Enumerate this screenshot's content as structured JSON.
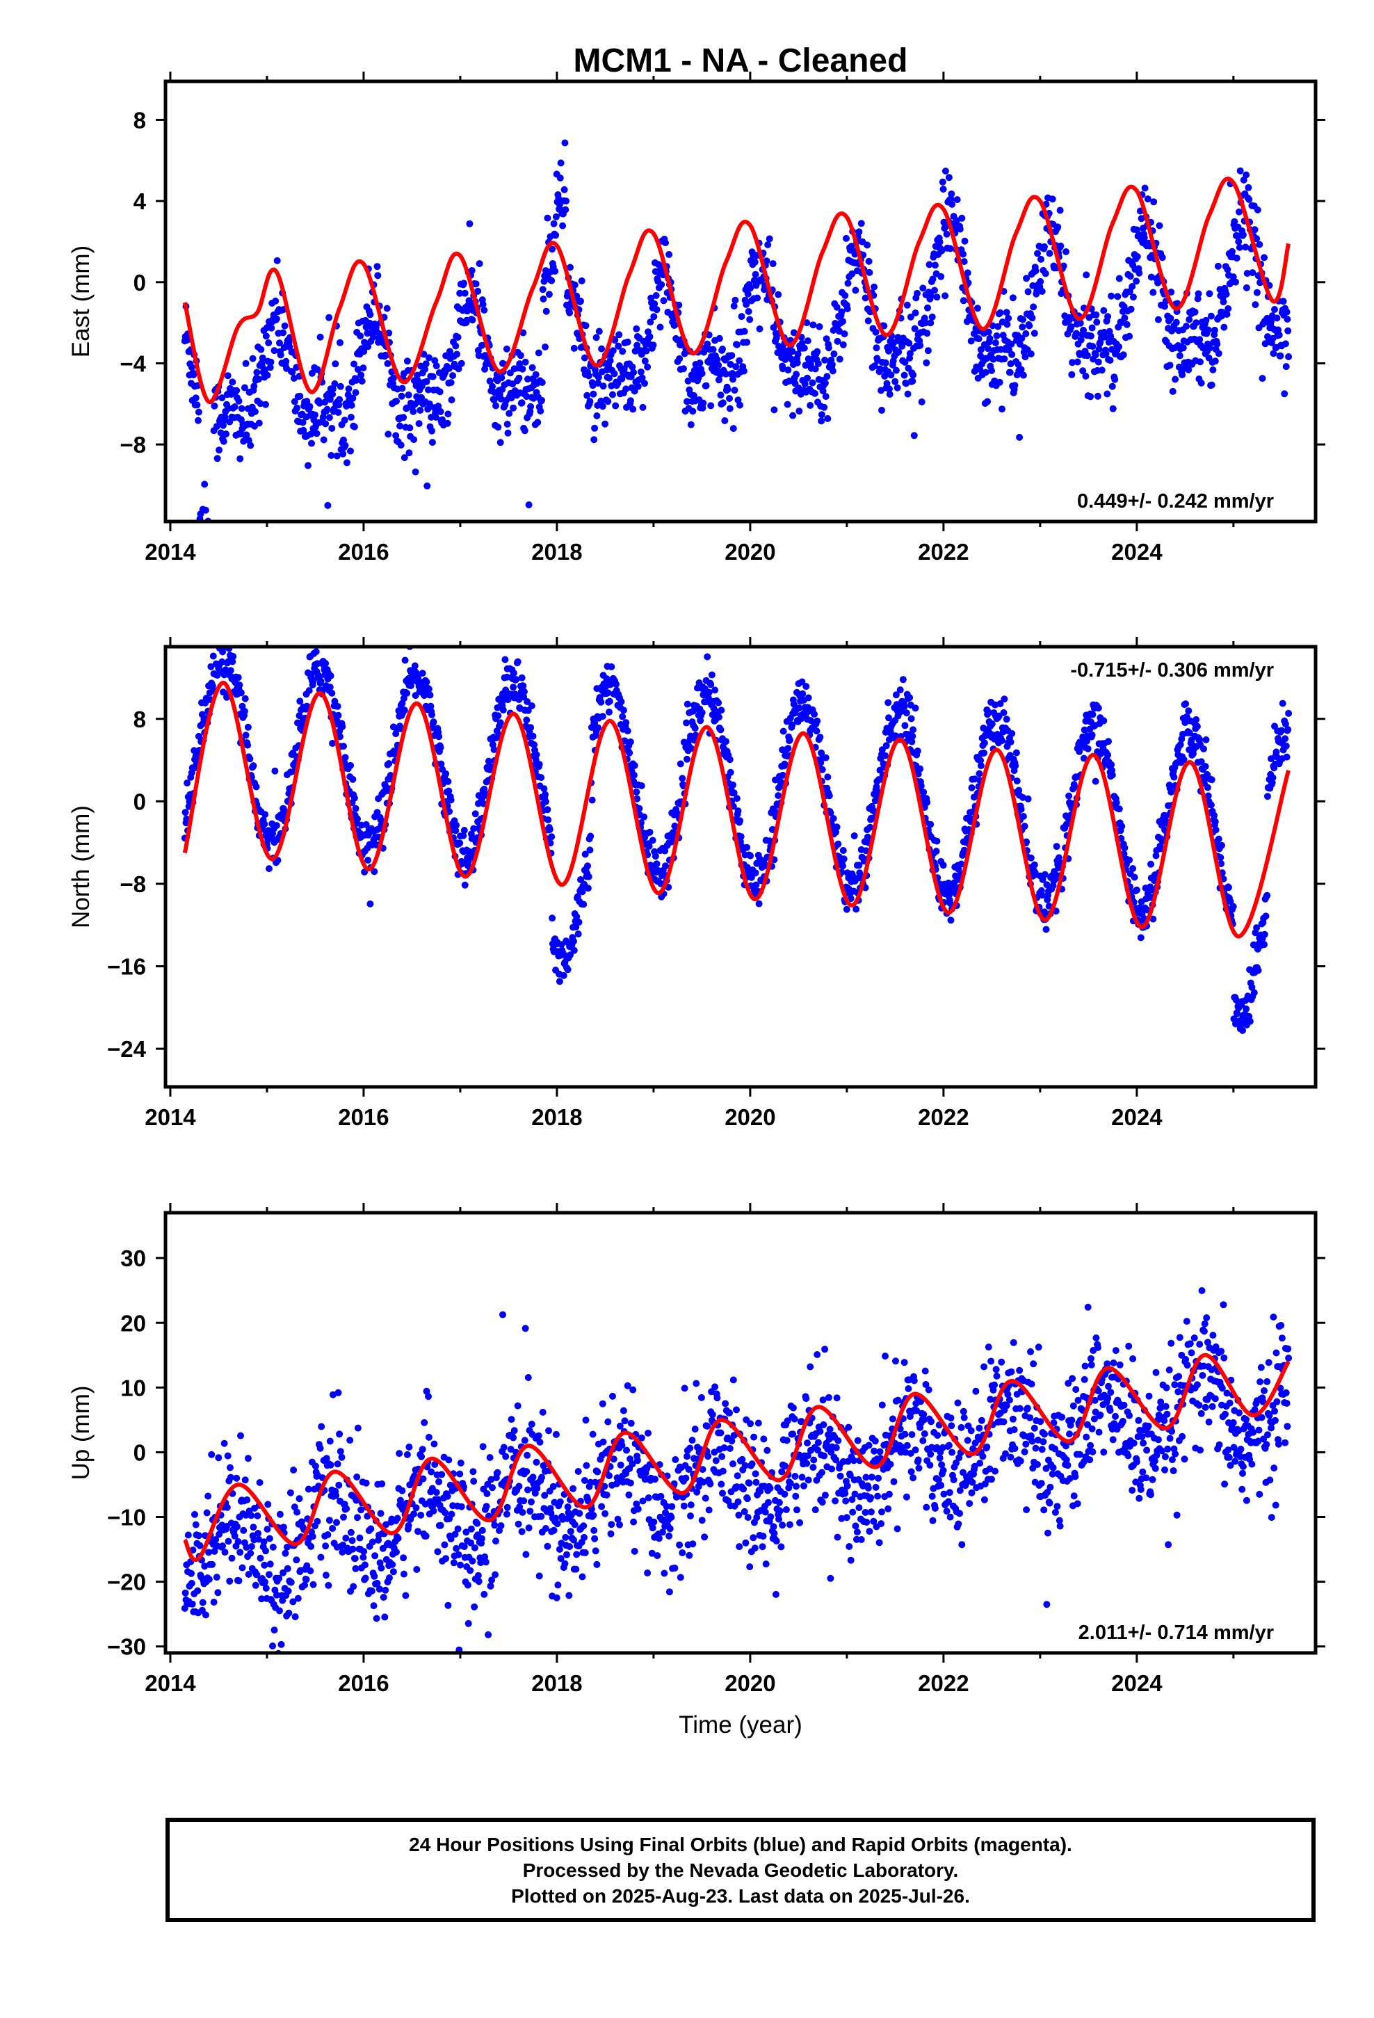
{
  "chart_data": [
    {
      "type": "scatter",
      "title": "MCM1  - NA - Cleaned",
      "xlabel": "",
      "ylabel": "East (mm)",
      "xlim": [
        2013.95,
        2025.85
      ],
      "ylim": [
        -11.8,
        9.9
      ],
      "xticks": [
        2014,
        2016,
        2018,
        2020,
        2022,
        2024
      ],
      "xtick_labels": [
        "2014",
        "2016",
        "2018",
        "2020",
        "2022",
        "2024"
      ],
      "yticks": [
        -8,
        -4,
        0,
        4,
        8
      ],
      "ytick_labels": [
        "−8",
        "−4",
        "0",
        "4",
        "8"
      ],
      "annotation": "0.449+/- 0.242 mm/yr",
      "annotation_position": "bottom-right",
      "data_span": [
        2014.15,
        2025.57
      ],
      "grid": false,
      "series": [
        {
          "kind": "points",
          "color": "#0000ff",
          "trend": [
            -2.9,
            0.449
          ],
          "phase": 2020.1,
          "annual_amplitude": [
            2.1,
            2.8
          ],
          "semiannual_amplitude": 1.2,
          "scatter": 1.1,
          "offsets": [
            [
              2014.15,
              2014.3,
              0
            ],
            [
              2014.3,
              2014.45,
              -5.5
            ],
            [
              2017.85,
              2018.1,
              4.5
            ],
            [
              2021.7,
              2022.2,
              1.8
            ]
          ]
        },
        {
          "kind": "model",
          "color": "#ff0000",
          "points": [
            [
              2014.15,
              -1.0
            ],
            [
              2014.4,
              -5.9
            ],
            [
              2014.7,
              -2.2
            ],
            [
              2014.9,
              -1.5
            ],
            [
              2015.1,
              0.5
            ],
            [
              2015.45,
              -5.4
            ],
            [
              2015.75,
              -1.3
            ],
            [
              2016.0,
              0.9
            ],
            [
              2016.4,
              -4.9
            ],
            [
              2016.75,
              -1.0
            ],
            [
              2017.0,
              1.3
            ],
            [
              2017.4,
              -4.4
            ],
            [
              2017.75,
              -0.3
            ],
            [
              2018.0,
              1.8
            ],
            [
              2018.4,
              -4.1
            ],
            [
              2018.75,
              0.4
            ],
            [
              2019.0,
              2.4
            ],
            [
              2019.4,
              -3.5
            ],
            [
              2019.75,
              1.0
            ],
            [
              2020.0,
              2.8
            ],
            [
              2020.4,
              -3.1
            ],
            [
              2020.75,
              1.5
            ],
            [
              2021.0,
              3.2
            ],
            [
              2021.4,
              -2.6
            ],
            [
              2021.75,
              2.0
            ],
            [
              2022.0,
              3.6
            ],
            [
              2022.4,
              -2.3
            ],
            [
              2022.75,
              2.4
            ],
            [
              2023.0,
              4.0
            ],
            [
              2023.4,
              -1.8
            ],
            [
              2023.75,
              2.9
            ],
            [
              2024.0,
              4.5
            ],
            [
              2024.4,
              -1.3
            ],
            [
              2024.75,
              3.3
            ],
            [
              2025.0,
              4.9
            ],
            [
              2025.4,
              -0.9
            ],
            [
              2025.57,
              1.9
            ]
          ]
        }
      ]
    },
    {
      "type": "scatter",
      "title": "",
      "xlabel": "",
      "ylabel": "North (mm)",
      "xlim": [
        2013.95,
        2025.85
      ],
      "ylim": [
        -27.7,
        15.0
      ],
      "xticks": [
        2014,
        2016,
        2018,
        2020,
        2022,
        2024
      ],
      "xtick_labels": [
        "2014",
        "2016",
        "2018",
        "2020",
        "2022",
        "2024"
      ],
      "yticks": [
        -24,
        -16,
        -8,
        0,
        8
      ],
      "ytick_labels": [
        "−24",
        "−16",
        "−8",
        "0",
        "8"
      ],
      "annotation": "-0.715+/- 0.306 mm/yr",
      "annotation_position": "top-right",
      "data_span": [
        2014.15,
        2025.57
      ],
      "grid": false,
      "series": [
        {
          "kind": "points",
          "color": "#0000ff",
          "trend": [
            1.2,
            -0.715
          ],
          "phase": 2019.55,
          "annual_amplitude": [
            8.5,
            9.0
          ],
          "semiannual_amplitude": 0.0,
          "scatter": 1.3,
          "offsets": [
            [
              2017.95,
              2018.35,
              -9.0
            ],
            [
              2025.0,
              2025.35,
              -9.5
            ]
          ]
        },
        {
          "kind": "model",
          "color": "#ff0000",
          "points": [
            [
              2014.15,
              -5.0
            ],
            [
              2014.55,
              11.5
            ],
            [
              2015.05,
              -5.6
            ],
            [
              2015.55,
              10.5
            ],
            [
              2016.05,
              -6.6
            ],
            [
              2016.55,
              9.5
            ],
            [
              2017.05,
              -7.3
            ],
            [
              2017.55,
              8.5
            ],
            [
              2018.05,
              -8.1
            ],
            [
              2018.55,
              7.8
            ],
            [
              2019.05,
              -8.9
            ],
            [
              2019.55,
              7.2
            ],
            [
              2020.05,
              -9.5
            ],
            [
              2020.55,
              6.6
            ],
            [
              2021.05,
              -10.1
            ],
            [
              2021.55,
              6.0
            ],
            [
              2022.05,
              -10.8
            ],
            [
              2022.55,
              5.0
            ],
            [
              2023.05,
              -11.5
            ],
            [
              2023.55,
              4.5
            ],
            [
              2024.05,
              -12.2
            ],
            [
              2024.55,
              3.8
            ],
            [
              2025.05,
              -13.1
            ],
            [
              2025.57,
              3.0
            ]
          ]
        }
      ]
    },
    {
      "type": "scatter",
      "title": "",
      "xlabel": "Time (year)",
      "ylabel": "Up (mm)",
      "xlim": [
        2013.95,
        2025.85
      ],
      "ylim": [
        -31.0,
        37.0
      ],
      "xticks": [
        2014,
        2016,
        2018,
        2020,
        2022,
        2024
      ],
      "xtick_labels": [
        "2014",
        "2016",
        "2018",
        "2020",
        "2022",
        "2024"
      ],
      "yticks": [
        -30,
        -20,
        -10,
        0,
        10,
        20,
        30
      ],
      "ytick_labels": [
        "−30",
        "−20",
        "−10",
        "0",
        "10",
        "20",
        "30"
      ],
      "annotation": "2.011+/- 0.714 mm/yr",
      "annotation_position": "bottom-right",
      "data_span": [
        2014.15,
        2025.57
      ],
      "grid": false,
      "series": [
        {
          "kind": "points",
          "color": "#0000ff",
          "trend": [
            -3.5,
            2.011
          ],
          "phase": 2019.65,
          "annual_amplitude": [
            5.5,
            5.5
          ],
          "semiannual_amplitude": 0.0,
          "scatter": 5.2,
          "offsets": []
        },
        {
          "kind": "model",
          "color": "#ff0000",
          "points": [
            [
              2014.15,
              -13.5
            ],
            [
              2014.3,
              -16.3
            ],
            [
              2014.7,
              -5.0
            ],
            [
              2015.3,
              -14.2
            ],
            [
              2015.7,
              -3.0
            ],
            [
              2016.3,
              -12.5
            ],
            [
              2016.7,
              -1.0
            ],
            [
              2017.3,
              -10.5
            ],
            [
              2017.7,
              1.0
            ],
            [
              2018.3,
              -8.5
            ],
            [
              2018.7,
              3.0
            ],
            [
              2019.3,
              -6.3
            ],
            [
              2019.7,
              5.0
            ],
            [
              2020.3,
              -4.3
            ],
            [
              2020.7,
              7.0
            ],
            [
              2021.3,
              -2.3
            ],
            [
              2021.7,
              9.0
            ],
            [
              2022.3,
              -0.3
            ],
            [
              2022.7,
              11.0
            ],
            [
              2023.3,
              1.7
            ],
            [
              2023.7,
              13.0
            ],
            [
              2024.3,
              3.7
            ],
            [
              2024.7,
              15.0
            ],
            [
              2025.2,
              5.7
            ],
            [
              2025.57,
              14.0
            ]
          ]
        }
      ]
    }
  ],
  "footer": {
    "line1": "24 Hour Positions Using Final Orbits (blue) and Rapid Orbits (magenta).",
    "line2": "Processed by the Nevada Geodetic Laboratory.",
    "line3": "Plotted on 2025-Aug-23. Last data on 2025-Jul-26."
  }
}
